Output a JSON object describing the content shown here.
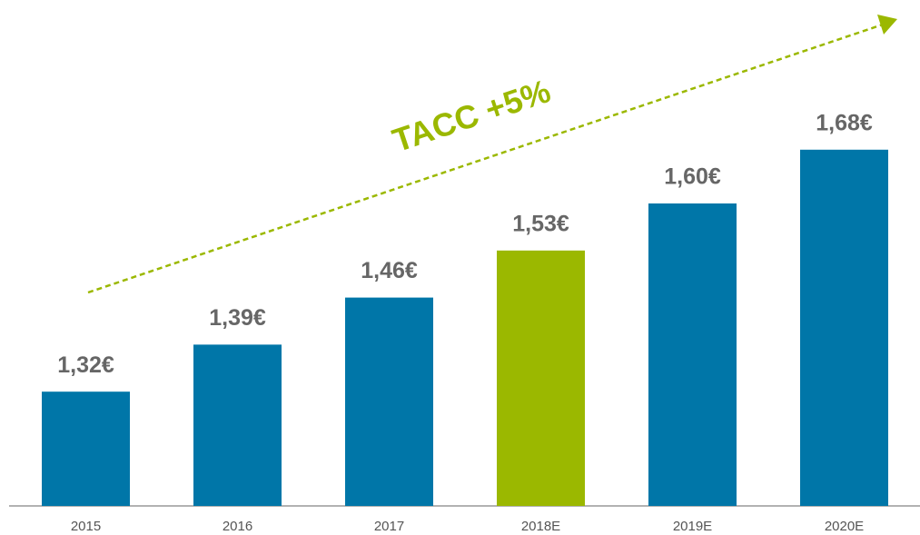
{
  "chart_data": {
    "type": "bar",
    "categories": [
      "2015",
      "2016",
      "2017",
      "2018E",
      "2019E",
      "2020E"
    ],
    "values": [
      1.32,
      1.39,
      1.46,
      1.53,
      1.6,
      1.68
    ],
    "value_labels": [
      "1,32€",
      "1,39€",
      "1,46€",
      "1,53€",
      "1,60€",
      "1,68€"
    ],
    "colors": [
      "#0076a8",
      "#0076a8",
      "#0076a8",
      "#9bb800",
      "#0076a8",
      "#0076a8"
    ],
    "ylim": [
      1.15,
      1.7
    ],
    "annotation": "TACC +5%",
    "annotation_color": "#9bb800"
  }
}
